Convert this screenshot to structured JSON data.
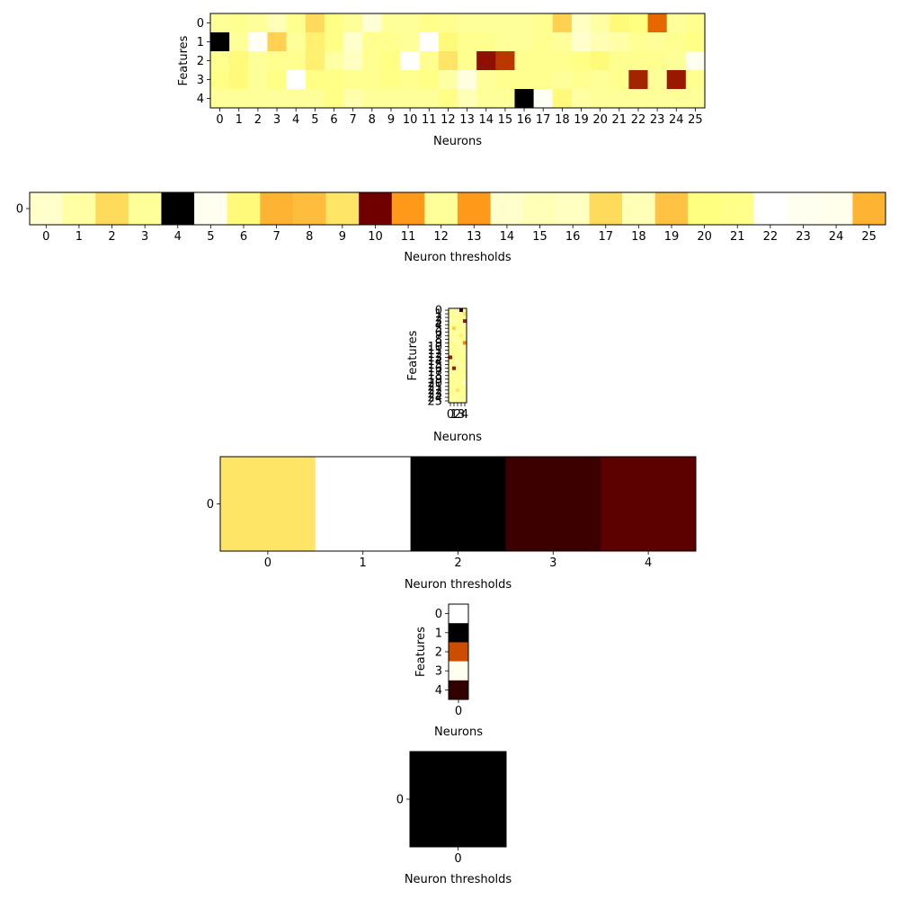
{
  "chart_data": [
    {
      "type": "heatmap",
      "colormap": "afmhot",
      "xlabel": "Neurons",
      "ylabel": "Features",
      "xticks": [
        "0",
        "1",
        "2",
        "3",
        "4",
        "5",
        "6",
        "7",
        "8",
        "9",
        "10",
        "11",
        "12",
        "13",
        "14",
        "15",
        "16",
        "17",
        "18",
        "19",
        "20",
        "21",
        "22",
        "23",
        "24",
        "25"
      ],
      "yticks": [
        "0",
        "1",
        "2",
        "3",
        "4"
      ],
      "values": [
        [
          0.8,
          0.78,
          0.8,
          0.86,
          0.78,
          0.68,
          0.76,
          0.8,
          0.92,
          0.8,
          0.8,
          0.77,
          0.78,
          0.8,
          0.8,
          0.8,
          0.8,
          0.78,
          0.66,
          0.88,
          0.82,
          0.74,
          0.75,
          0.45,
          0.8,
          0.78
        ],
        [
          0.0,
          0.8,
          0.98,
          0.66,
          0.8,
          0.72,
          0.76,
          0.9,
          0.78,
          0.78,
          0.8,
          1.0,
          0.74,
          0.78,
          0.78,
          0.8,
          0.8,
          0.78,
          0.8,
          0.9,
          0.85,
          0.83,
          0.79,
          0.8,
          0.78,
          0.76
        ],
        [
          0.78,
          0.74,
          0.8,
          0.78,
          0.78,
          0.72,
          0.82,
          0.88,
          0.78,
          0.76,
          1.0,
          0.78,
          0.7,
          0.78,
          0.28,
          0.36,
          0.78,
          0.78,
          0.78,
          0.76,
          0.74,
          0.78,
          0.78,
          0.78,
          0.8,
          0.97
        ],
        [
          0.76,
          0.74,
          0.8,
          0.76,
          1.0,
          0.76,
          0.76,
          0.78,
          0.78,
          0.76,
          0.78,
          0.76,
          0.82,
          0.94,
          0.8,
          0.78,
          0.78,
          0.78,
          0.8,
          0.78,
          0.8,
          0.78,
          0.32,
          0.8,
          0.3,
          0.78
        ],
        [
          0.8,
          0.8,
          0.8,
          0.8,
          0.8,
          0.8,
          0.76,
          0.84,
          0.8,
          0.8,
          0.8,
          0.8,
          0.76,
          0.86,
          0.8,
          0.8,
          0.0,
          0.98,
          0.74,
          0.82,
          0.8,
          0.8,
          0.8,
          0.8,
          0.8,
          0.8
        ]
      ]
    },
    {
      "type": "heatmap",
      "colormap": "afmhot",
      "xlabel": "Neuron thresholds",
      "ylabel": "",
      "xticks": [
        "0",
        "1",
        "2",
        "3",
        "4",
        "5",
        "6",
        "7",
        "8",
        "9",
        "10",
        "11",
        "12",
        "13",
        "14",
        "15",
        "16",
        "17",
        "18",
        "19",
        "20",
        "21",
        "22",
        "23",
        "24",
        "25"
      ],
      "yticks": [
        "0"
      ],
      "values": [
        [
          0.9,
          0.82,
          0.68,
          0.8,
          0.0,
          0.97,
          0.74,
          0.6,
          0.62,
          0.7,
          0.22,
          0.55,
          0.8,
          0.55,
          0.9,
          0.86,
          0.88,
          0.68,
          0.86,
          0.63,
          0.75,
          0.77,
          1.0,
          0.97,
          0.96,
          0.6
        ]
      ]
    },
    {
      "type": "heatmap",
      "colormap": "afmhot",
      "xlabel": "Neurons",
      "ylabel": "Features",
      "xticks": [
        "0",
        "1",
        "2",
        "3",
        "4"
      ],
      "yticks": [
        "0",
        "1",
        "2",
        "3",
        "4",
        "5",
        "6",
        "7",
        "8",
        "9",
        "10",
        "11",
        "12",
        "13",
        "14",
        "15",
        "16",
        "17",
        "18",
        "19",
        "20",
        "21",
        "22",
        "23",
        "24",
        "25"
      ],
      "tick_labels_overlap": true,
      "values": [
        [
          0.8,
          0.85,
          0.78,
          0.1,
          0.8
        ],
        [
          0.78,
          0.8,
          0.86,
          0.8,
          0.7
        ],
        [
          0.82,
          0.78,
          0.8,
          0.76,
          0.8
        ],
        [
          0.8,
          0.88,
          0.78,
          0.8,
          0.3
        ],
        [
          0.78,
          0.8,
          0.76,
          0.82,
          0.8
        ],
        [
          0.8,
          0.66,
          0.8,
          0.78,
          0.76
        ],
        [
          0.86,
          0.78,
          0.82,
          0.8,
          0.78
        ],
        [
          0.78,
          0.8,
          0.78,
          0.72,
          0.8
        ],
        [
          0.8,
          0.9,
          0.8,
          0.78,
          0.8
        ],
        [
          0.76,
          0.78,
          0.82,
          0.8,
          0.5
        ],
        [
          0.8,
          0.78,
          0.8,
          0.86,
          0.78
        ],
        [
          0.78,
          0.82,
          0.76,
          0.8,
          0.8
        ],
        [
          0.8,
          0.76,
          0.8,
          0.78,
          0.82
        ],
        [
          0.3,
          0.8,
          0.78,
          0.8,
          0.78
        ],
        [
          0.78,
          0.8,
          0.86,
          0.76,
          0.8
        ],
        [
          0.8,
          0.78,
          0.8,
          0.82,
          0.78
        ],
        [
          0.76,
          0.3,
          0.78,
          0.8,
          0.8
        ],
        [
          0.8,
          0.82,
          0.8,
          0.78,
          0.76
        ],
        [
          0.82,
          0.78,
          0.76,
          0.8,
          0.8
        ],
        [
          0.78,
          0.8,
          0.84,
          0.78,
          0.8
        ],
        [
          0.8,
          0.76,
          0.8,
          0.8,
          0.9
        ],
        [
          0.78,
          0.82,
          0.78,
          0.76,
          0.8
        ],
        [
          0.8,
          0.8,
          0.7,
          0.82,
          0.78
        ],
        [
          0.76,
          0.78,
          0.8,
          0.8,
          0.8
        ],
        [
          0.8,
          0.86,
          0.78,
          0.78,
          0.82
        ],
        [
          0.82,
          0.78,
          0.8,
          0.84,
          0.78
        ]
      ]
    },
    {
      "type": "heatmap",
      "colormap": "afmhot",
      "xlabel": "Neuron thresholds",
      "ylabel": "",
      "xticks": [
        "0",
        "1",
        "2",
        "3",
        "4"
      ],
      "yticks": [
        "0"
      ],
      "values": [
        [
          0.7,
          1.0,
          0.0,
          0.12,
          0.18
        ]
      ]
    },
    {
      "type": "heatmap",
      "colormap": "afmhot",
      "xlabel": "Neurons",
      "ylabel": "Features",
      "xticks": [
        "0"
      ],
      "yticks": [
        "0",
        "1",
        "2",
        "3",
        "4"
      ],
      "values": [
        [
          1.0
        ],
        [
          0.0
        ],
        [
          0.4
        ],
        [
          0.97
        ],
        [
          0.1
        ]
      ]
    },
    {
      "type": "heatmap",
      "colormap": "afmhot",
      "xlabel": "Neuron thresholds",
      "ylabel": "",
      "xticks": [
        "0"
      ],
      "yticks": [
        "0"
      ],
      "values": [
        [
          0.0
        ]
      ]
    }
  ]
}
